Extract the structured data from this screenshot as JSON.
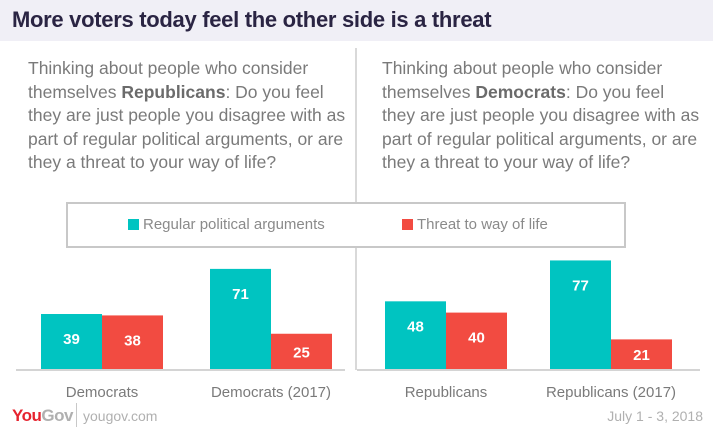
{
  "header": {
    "title": "More voters today feel the other side is a threat"
  },
  "questions": {
    "left": {
      "before": "Thinking about people who consider themselves ",
      "bold": "Republicans",
      "after": ": Do you feel they are just people you disagree with as part of regular political arguments, or are they a threat to your way of life?"
    },
    "right": {
      "before": "Thinking about people who consider themselves ",
      "bold": "Democrats",
      "after": ": Do you feel they are just people you disagree with as part of regular political arguments, or are they a threat to your way of life?"
    }
  },
  "footer": {
    "logo_you": "You",
    "logo_gov": "Gov",
    "site": "yougov.com",
    "date": "July 1 - 3, 2018"
  },
  "chart_data": {
    "type": "bar",
    "title": "More voters today feel the other side is a threat",
    "categories": [
      "Democrats",
      "Democrats (2017)",
      "Republicans",
      "Republicans (2017)"
    ],
    "series": [
      {
        "name": "Regular political arguments",
        "color": "#00c4c1",
        "values": [
          39,
          71,
          48,
          77
        ]
      },
      {
        "name": "Threat to way of life",
        "color": "#f24b41",
        "values": [
          38,
          25,
          40,
          21
        ]
      }
    ],
    "legend": "top-center",
    "xlabel": "",
    "ylabel": "",
    "ylim": [
      0,
      80
    ],
    "grid": false
  }
}
